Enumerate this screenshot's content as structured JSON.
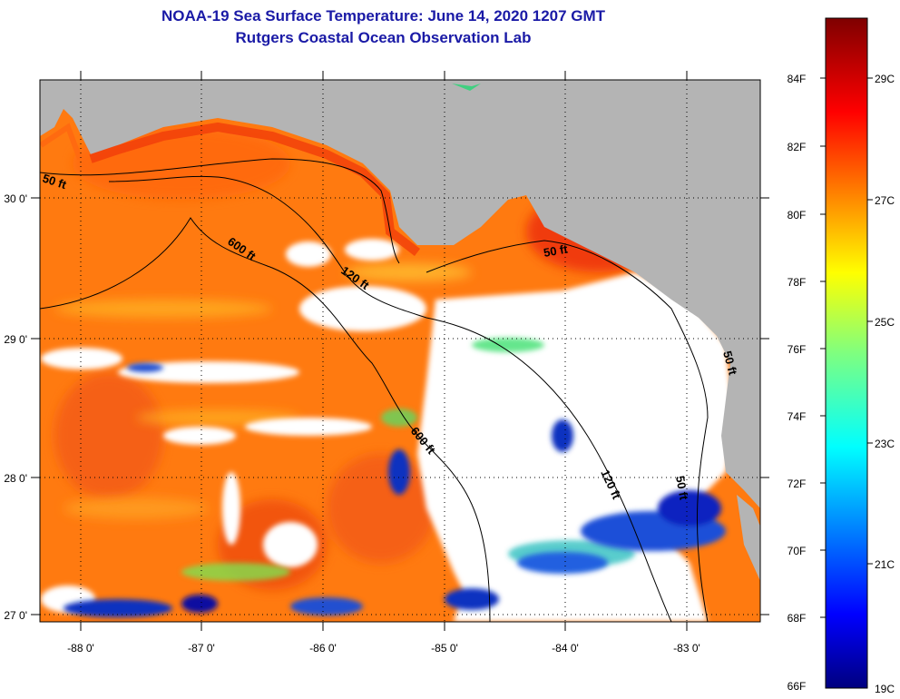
{
  "header": {
    "title_line1": "NOAA-19 Sea Surface Temperature:  June 14, 2020 1207 GMT",
    "title_line2": "Rutgers Coastal Ocean Observation Lab"
  },
  "map": {
    "lon_labels": [
      "-88 0'",
      "-87 0'",
      "-86 0'",
      "-85 0'",
      "-84 0'",
      "-83 0'"
    ],
    "lat_labels": [
      "30 0'",
      "29 0'",
      "28 0'",
      "27 0'"
    ],
    "contours": [
      "50 ft",
      "600 ft",
      "120 ft",
      "50 ft",
      "600 ft",
      "120 ft",
      "50 ft",
      "50 ft"
    ],
    "colors": {
      "land": "#b4b4b4",
      "cloud": "#ffffff",
      "warm": "#ff7a10",
      "hot": "#f03a0a",
      "cool": "#1f4fd8",
      "cold": "#0a0aa0"
    }
  },
  "colorbar": {
    "f_labels": [
      "84F",
      "82F",
      "80F",
      "78F",
      "76F",
      "74F",
      "72F",
      "70F",
      "68F",
      "66F"
    ],
    "c_labels": [
      "29C",
      "27C",
      "25C",
      "23C",
      "21C",
      "19C"
    ]
  }
}
